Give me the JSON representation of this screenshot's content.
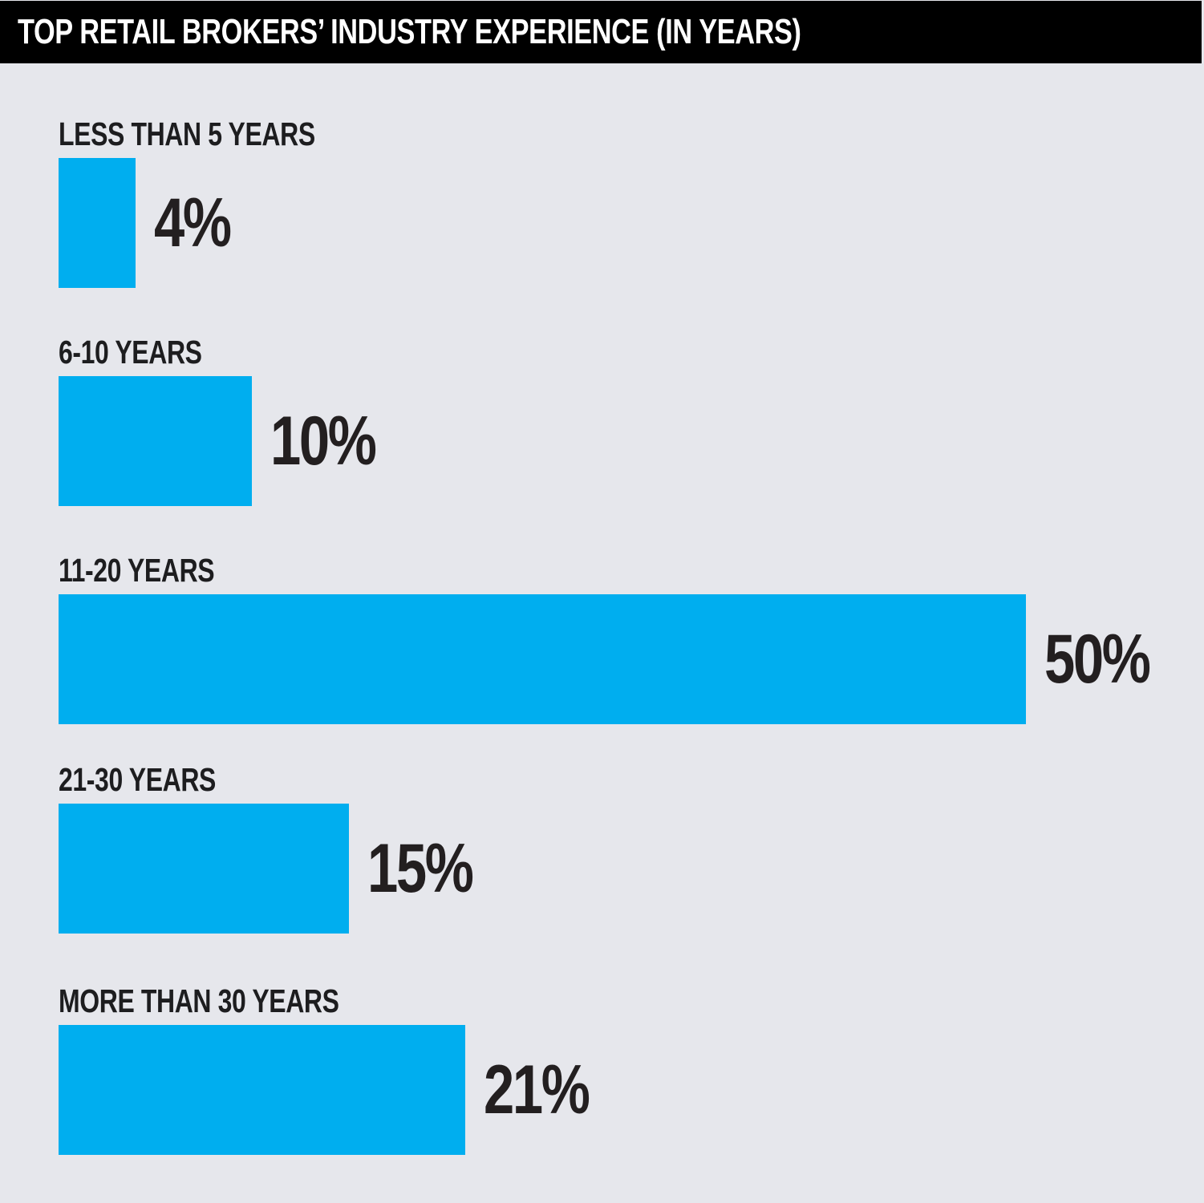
{
  "chart_data": {
    "type": "bar",
    "orientation": "horizontal",
    "title": "TOP RETAIL BROKERS’ INDUSTRY EXPERIENCE (IN YEARS)",
    "categories": [
      "LESS THAN 5 YEARS",
      "6-10 YEARS",
      "11-20 YEARS",
      "21-30 YEARS",
      "MORE THAN 30 YEARS"
    ],
    "values": [
      4,
      10,
      50,
      15,
      21
    ],
    "value_labels": [
      "4%",
      "10%",
      "50%",
      "15%",
      "21%"
    ],
    "unit": "%",
    "xlim": [
      0,
      50
    ],
    "grid": false,
    "colors": {
      "bar": "#00aeef",
      "background": "#e6e7ec",
      "title_bar": "#000000"
    }
  }
}
